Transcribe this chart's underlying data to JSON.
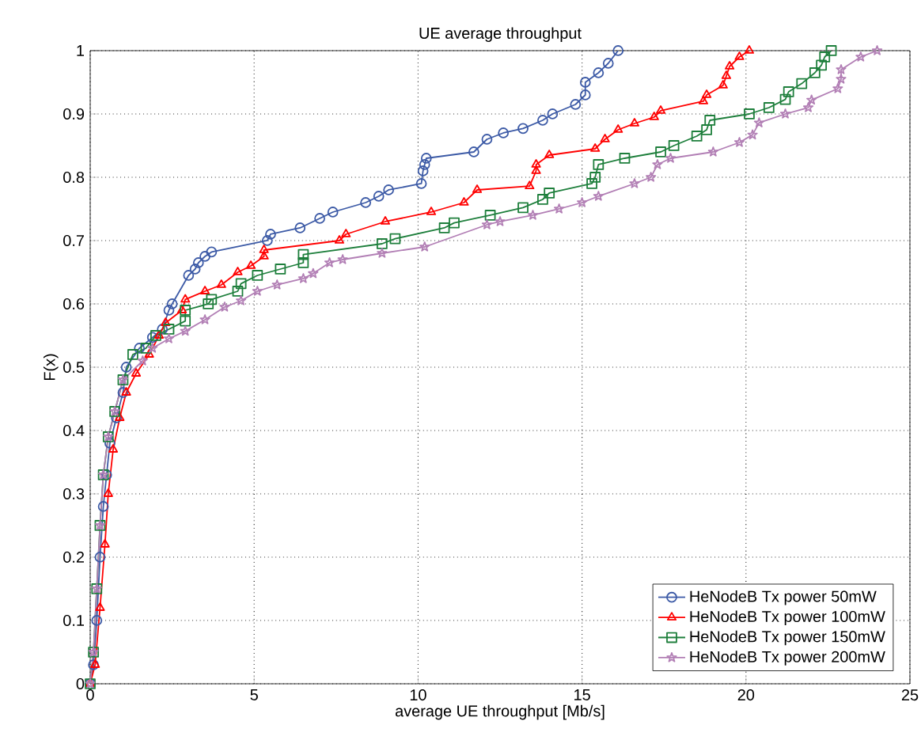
{
  "chart_data": {
    "type": "line",
    "title": "UE average throughput",
    "xlabel": "average UE throughput [Mb/s]",
    "ylabel": "F(x)",
    "xlim": [
      0,
      25
    ],
    "ylim": [
      0,
      1
    ],
    "xticks": [
      0,
      5,
      10,
      15,
      20,
      25
    ],
    "yticks": [
      0,
      0.1,
      0.2,
      0.3,
      0.4,
      0.5,
      0.6,
      0.7,
      0.8,
      0.9,
      1
    ],
    "grid": true,
    "legend": "bottom right",
    "line_style": "solid",
    "series": [
      {
        "name": "HeNodeB Tx power 50mW",
        "color": "#3c5aa6",
        "marker": "circle",
        "x": [
          0,
          0.1,
          0.2,
          0.3,
          0.4,
          0.5,
          0.6,
          0.8,
          1.0,
          1.1,
          1.5,
          1.9,
          2.2,
          2.4,
          2.5,
          3.0,
          3.2,
          3.3,
          3.5,
          3.7,
          5.4,
          5.5,
          6.4,
          7.0,
          7.4,
          8.4,
          8.8,
          9.1,
          10.1,
          10.15,
          10.2,
          10.25,
          11.7,
          12.1,
          12.6,
          13.2,
          13.8,
          14.1,
          14.8,
          15.1,
          15.1,
          15.5,
          15.8,
          16.1
        ],
        "values": [
          0,
          0.03,
          0.1,
          0.2,
          0.28,
          0.33,
          0.38,
          0.42,
          0.46,
          0.5,
          0.53,
          0.547,
          0.56,
          0.59,
          0.6,
          0.645,
          0.655,
          0.665,
          0.675,
          0.682,
          0.7,
          0.71,
          0.72,
          0.735,
          0.745,
          0.76,
          0.77,
          0.78,
          0.79,
          0.81,
          0.82,
          0.83,
          0.84,
          0.86,
          0.87,
          0.877,
          0.89,
          0.9,
          0.915,
          0.93,
          0.95,
          0.965,
          0.98,
          1.0
        ]
      },
      {
        "name": "HeNodeB Tx power 100mW",
        "color": "#ff0000",
        "marker": "triangle",
        "x": [
          0,
          0.15,
          0.3,
          0.45,
          0.55,
          0.7,
          0.9,
          1.1,
          1.4,
          1.8,
          2.1,
          2.3,
          2.8,
          2.9,
          3.5,
          4.0,
          4.5,
          4.9,
          5.3,
          5.3,
          7.6,
          7.8,
          9.0,
          10.4,
          11.4,
          11.8,
          13.4,
          13.6,
          13.6,
          14.0,
          15.4,
          15.7,
          16.1,
          16.6,
          17.2,
          17.4,
          18.7,
          18.8,
          19.3,
          19.4,
          19.5,
          19.8,
          20.1
        ],
        "values": [
          0,
          0.03,
          0.12,
          0.22,
          0.3,
          0.37,
          0.42,
          0.46,
          0.49,
          0.52,
          0.55,
          0.57,
          0.59,
          0.607,
          0.62,
          0.63,
          0.65,
          0.66,
          0.675,
          0.685,
          0.7,
          0.71,
          0.73,
          0.745,
          0.76,
          0.78,
          0.786,
          0.81,
          0.82,
          0.835,
          0.845,
          0.86,
          0.875,
          0.885,
          0.895,
          0.905,
          0.92,
          0.93,
          0.945,
          0.96,
          0.975,
          0.99,
          1.0
        ]
      },
      {
        "name": "HeNodeB Tx power 150mW",
        "color": "#1e7f3c",
        "marker": "square",
        "x": [
          0,
          0.1,
          0.2,
          0.3,
          0.4,
          0.55,
          0.75,
          1.0,
          1.3,
          1.7,
          2.0,
          2.4,
          2.9,
          2.9,
          3.6,
          3.7,
          4.5,
          4.6,
          5.1,
          5.8,
          6.5,
          6.5,
          8.9,
          9.3,
          10.8,
          11.1,
          12.2,
          13.2,
          13.8,
          14.0,
          15.3,
          15.4,
          15.5,
          16.3,
          17.4,
          17.8,
          18.5,
          18.8,
          18.9,
          20.1,
          20.7,
          21.2,
          21.3,
          21.7,
          22.1,
          22.3,
          22.4,
          22.6
        ],
        "values": [
          0,
          0.05,
          0.15,
          0.25,
          0.33,
          0.39,
          0.43,
          0.48,
          0.52,
          0.53,
          0.55,
          0.56,
          0.573,
          0.59,
          0.6,
          0.607,
          0.62,
          0.632,
          0.645,
          0.655,
          0.665,
          0.678,
          0.695,
          0.703,
          0.72,
          0.728,
          0.74,
          0.752,
          0.765,
          0.775,
          0.79,
          0.8,
          0.82,
          0.83,
          0.84,
          0.85,
          0.865,
          0.875,
          0.89,
          0.9,
          0.91,
          0.923,
          0.935,
          0.948,
          0.965,
          0.977,
          0.99,
          1.0
        ]
      },
      {
        "name": "HeNodeB Tx power 200mW",
        "color": "#b27fb5",
        "marker": "star",
        "x": [
          0,
          0.1,
          0.2,
          0.3,
          0.4,
          0.55,
          0.75,
          1.0,
          1.6,
          1.9,
          2.4,
          2.9,
          3.5,
          4.1,
          4.6,
          5.1,
          5.7,
          6.5,
          6.8,
          7.3,
          7.7,
          8.9,
          10.2,
          12.1,
          12.5,
          13.5,
          14.3,
          15.0,
          15.5,
          16.6,
          17.1,
          17.3,
          17.7,
          19.0,
          19.8,
          20.2,
          20.4,
          21.2,
          21.9,
          22.0,
          22.8,
          22.9,
          22.9,
          23.5,
          24.0
        ],
        "values": [
          0,
          0.05,
          0.15,
          0.25,
          0.33,
          0.39,
          0.43,
          0.48,
          0.51,
          0.53,
          0.545,
          0.557,
          0.575,
          0.595,
          0.605,
          0.62,
          0.63,
          0.64,
          0.648,
          0.665,
          0.67,
          0.68,
          0.69,
          0.725,
          0.73,
          0.74,
          0.75,
          0.76,
          0.77,
          0.79,
          0.8,
          0.82,
          0.83,
          0.84,
          0.855,
          0.867,
          0.886,
          0.9,
          0.91,
          0.922,
          0.94,
          0.955,
          0.97,
          0.99,
          1.0
        ]
      }
    ]
  }
}
